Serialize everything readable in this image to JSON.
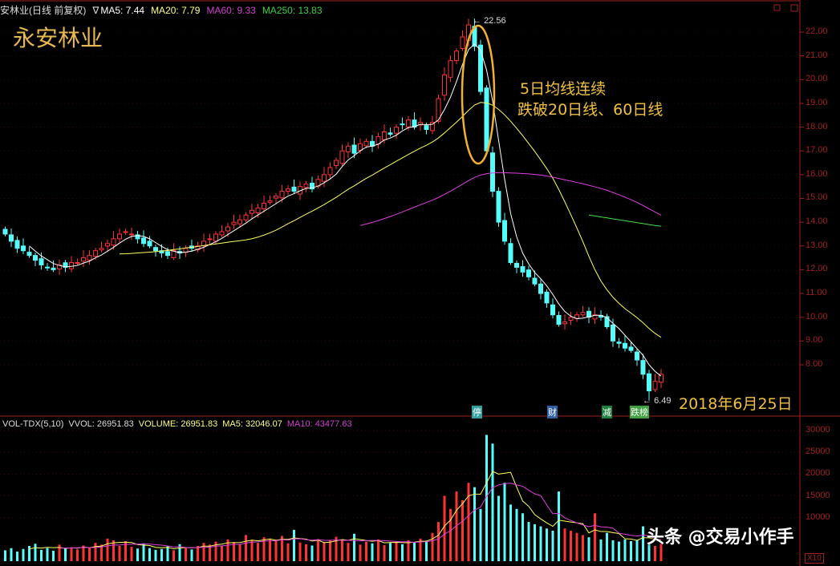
{
  "header": {
    "title": "安林业(日线 前复权)",
    "arrow": "∇",
    "ma5": "MA5: 7.44",
    "ma20": "MA20: 7.79",
    "ma60": "MA60: 9.33",
    "ma250": "MA250: 13.83"
  },
  "stock_name": "永安林业",
  "annotation": {
    "line1": "5日均线连续",
    "line2": "跌破20日线、60日线"
  },
  "date_label": "2018年6月25日",
  "high_label": "22.56",
  "low_label": "6.49",
  "markers": [
    {
      "text": "停",
      "color": "#30a0a0"
    },
    {
      "text": "财",
      "color": "#3060a0"
    },
    {
      "text": "减",
      "color": "#208040"
    },
    {
      "text": "跌榜",
      "color": "#40a040"
    }
  ],
  "volume_header": {
    "name": "VOL-TDX(5,10)",
    "vvol": "VVOL: 26951.83",
    "volume": "VOLUME: 26951.83",
    "ma5": "MA5: 32046.07",
    "ma10": "MA10: 43477.63"
  },
  "watermark": "头条 @交易小作手",
  "volume_unit": "X10",
  "colors": {
    "up": "#ff3232",
    "down": "#54fcfc",
    "ma5": "#ffffff",
    "ma20": "#ffff60",
    "ma60": "#e040e0",
    "ma250": "#40e040",
    "axis": "#a02020"
  },
  "chart_data": {
    "type": "candlestick",
    "price_axis": {
      "ticks": [
        "22.00",
        "21.00",
        "20.00",
        "19.00",
        "18.00",
        "17.00",
        "16.00",
        "15.00",
        "14.00",
        "13.00",
        "12.00",
        "11.00",
        "10.00",
        "9.00",
        "8.00"
      ],
      "range": [
        6.2,
        22.8
      ]
    },
    "close": [
      13.5,
      13.2,
      12.9,
      12.8,
      12.6,
      12.4,
      12.2,
      12.1,
      12.0,
      12.2,
      12.1,
      12.3,
      12.3,
      12.5,
      12.6,
      12.8,
      12.9,
      13.1,
      13.3,
      13.5,
      13.6,
      13.5,
      13.3,
      13.1,
      13.0,
      12.8,
      12.7,
      12.6,
      12.8,
      12.7,
      12.9,
      12.9,
      13.0,
      13.2,
      13.3,
      13.5,
      13.6,
      13.8,
      14.0,
      14.1,
      14.3,
      14.5,
      14.6,
      14.8,
      14.9,
      15.1,
      15.3,
      15.4,
      15.3,
      15.5,
      15.6,
      15.4,
      15.8,
      16.0,
      16.3,
      16.6,
      17.0,
      17.2,
      16.9,
      17.3,
      17.4,
      17.2,
      17.6,
      17.8,
      17.7,
      18.0,
      18.1,
      18.3,
      18.0,
      18.2,
      17.9,
      18.2,
      19.2,
      20.2,
      20.8,
      21.2,
      21.8,
      22.3,
      21.4,
      19.5,
      17.0,
      15.3,
      14.0,
      13.2,
      12.3,
      12.1,
      11.9,
      11.7,
      11.4,
      11.0,
      10.6,
      10.1,
      9.7,
      9.8,
      10.0,
      10.1,
      10.2,
      10.0,
      10.1,
      10.0,
      9.6,
      9.0,
      8.9,
      8.7,
      8.6,
      8.2,
      7.6,
      6.9,
      7.3,
      7.6
    ],
    "high": 22.56,
    "low": 6.49,
    "ma250_tail": [
      14.3,
      14.26,
      14.22,
      14.18,
      14.14,
      14.1,
      14.06,
      14.02,
      13.98,
      13.94,
      13.9,
      13.86,
      13.83
    ],
    "volume_axis": {
      "ticks": [
        "30000",
        "25000",
        "20000",
        "15000",
        "10000"
      ],
      "range": [
        0,
        30000
      ]
    },
    "volume": [
      2500,
      3000,
      2200,
      2800,
      3500,
      4000,
      2600,
      3000,
      2400,
      3800,
      2900,
      3200,
      2700,
      3600,
      3100,
      4200,
      3800,
      5200,
      4800,
      3500,
      4600,
      3300,
      2900,
      4100,
      3000,
      2600,
      2800,
      3400,
      2500,
      3900,
      3000,
      2700,
      3500,
      4200,
      3800,
      4500,
      3600,
      5000,
      4400,
      3900,
      6000,
      4800,
      4200,
      5500,
      5000,
      4600,
      5800,
      4100,
      7200,
      4300,
      3900,
      3600,
      5100,
      4400,
      4800,
      5600,
      4900,
      4200,
      6300,
      3800,
      4500,
      4100,
      5000,
      3700,
      4200,
      4600,
      3900,
      4800,
      4400,
      5200,
      4700,
      6500,
      9000,
      15000,
      12000,
      16000,
      14000,
      18000,
      17000,
      12000,
      29000,
      27000,
      15000,
      18000,
      13000,
      12000,
      11000,
      9000,
      8500,
      8000,
      7500,
      7000,
      16000,
      7500,
      7000,
      6500,
      6000,
      5500,
      11000,
      5000,
      6500,
      4800,
      4500,
      5000,
      4600,
      4900,
      8000,
      4200,
      3500,
      4000
    ]
  }
}
